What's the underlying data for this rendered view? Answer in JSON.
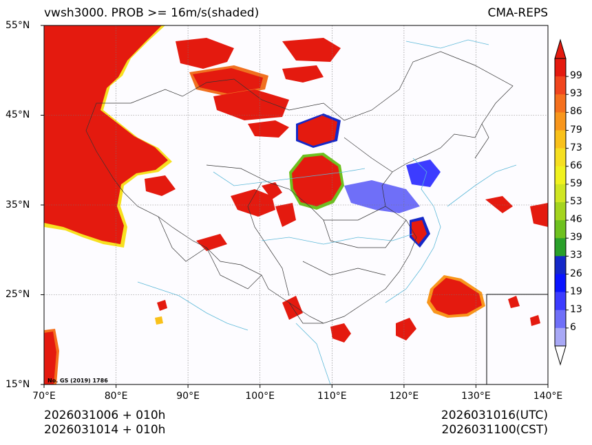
{
  "title": {
    "left": "vwsh3000. PROB >= 16m/s(shaded)",
    "right": "CMA-REPS"
  },
  "axes": {
    "lat_labels": [
      "55°N",
      "45°N",
      "35°N",
      "25°N",
      "15°N"
    ],
    "lon_labels": [
      "70°E",
      "80°E",
      "90°E",
      "100°E",
      "110°E",
      "120°E",
      "130°E",
      "140°E"
    ],
    "lat_range": [
      15,
      55
    ],
    "lon_range": [
      70,
      140
    ]
  },
  "colorbar": {
    "labels": [
      "99",
      "93",
      "86",
      "79",
      "73",
      "66",
      "59",
      "53",
      "46",
      "39",
      "33",
      "26",
      "19",
      "13",
      "6"
    ],
    "colors": [
      "#e41a0f",
      "#f0451d",
      "#f5701d",
      "#f8961c",
      "#f9c11a",
      "#f6df20",
      "#f0f21e",
      "#d0e622",
      "#a4d41e",
      "#6ec11f",
      "#2aa02a",
      "#1428c8",
      "#0a14ff",
      "#3c3cff",
      "#6f6ff8",
      "#a8a8f6"
    ],
    "top_color": "#e41a0f",
    "bottom_color": "#ffffff"
  },
  "footer": {
    "left_line1": "2026031006  +  010h",
    "left_line2": "2026031014  +  010h",
    "right_line1": "2026031016(UTC)",
    "right_line2": "2026031100(CST)"
  },
  "review_number": "No. GS (2019) 1786"
}
